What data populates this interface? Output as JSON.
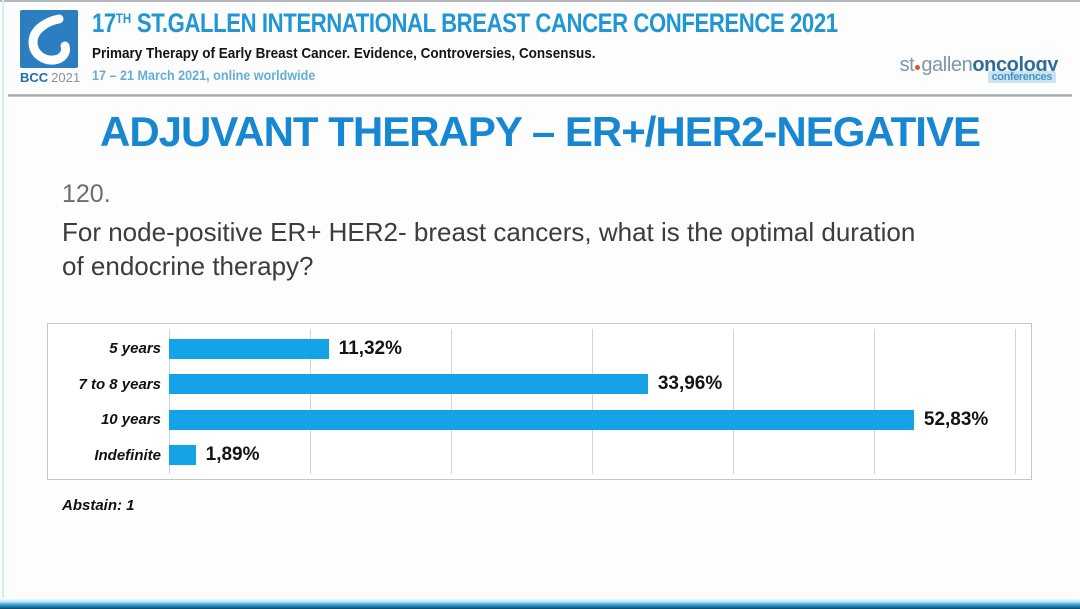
{
  "header": {
    "logo": {
      "bcc": "BCC",
      "year": "2021"
    },
    "title_num": "17",
    "title_sup": "TH",
    "title_rest": " ST.GALLEN INTERNATIONAL BREAST CANCER CONFERENCE 2021",
    "subtitle": "Primary Therapy of Early Breast Cancer. Evidence, Controversies, Consensus.",
    "date_line": "17 – 21 March 2021, online worldwide",
    "brand": {
      "stgallen": "st",
      "gallen": "gallen",
      "oncology": "oncology",
      "conferences": "conferences"
    }
  },
  "slide": {
    "title": "ADJUVANT THERAPY – ER+/HER2-NEGATIVE",
    "question_number": "120.",
    "question": "For node-positive ER+ HER2- breast cancers, what is the optimal duration of endocrine therapy?",
    "abstain_note": "Abstain: 1"
  },
  "chart_data": {
    "type": "bar",
    "orientation": "horizontal",
    "categories": [
      "5 years",
      "7 to 8 years",
      "10 years",
      "Indefinite"
    ],
    "values": [
      11.32,
      33.96,
      52.83,
      1.89
    ],
    "value_labels": [
      "11,32%",
      "33,96%",
      "52,83%",
      "1,89%"
    ],
    "title": "",
    "xlabel": "",
    "ylabel": "",
    "xlim": [
      0,
      60
    ],
    "gridline_interval": 10,
    "grid": true,
    "legend": false,
    "bar_color": "#14a3e6"
  },
  "colors": {
    "accent_blue": "#1787d2",
    "header_blue": "#2196d4",
    "bar_blue": "#14a3e6",
    "date_blue": "#64aed6",
    "logo_blue": "#2b7fc0"
  }
}
